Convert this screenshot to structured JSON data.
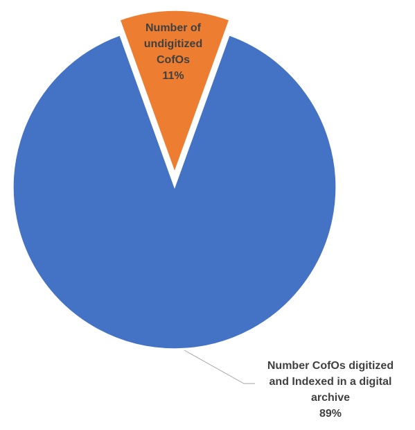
{
  "chart_data": {
    "type": "pie",
    "title": "",
    "slices": [
      {
        "label_lines": [
          "Number CofOs digitized",
          "and Indexed in a digital",
          "archive"
        ],
        "label": "Number CofOs digitized and Indexed in a digital archive",
        "value": 89,
        "percent_label": "89%",
        "color": "#4472C4",
        "exploded": false
      },
      {
        "label_lines": [
          "Number of",
          "undigitized",
          "CofOs"
        ],
        "label": "Number of undigitized CofOs",
        "value": 11,
        "percent_label": "11%",
        "color": "#ED7D31",
        "exploded": true
      }
    ],
    "legend": "none",
    "data_labels": "category name and percentage",
    "label_color": "#404040",
    "leader_line_color": "#A6A6A6"
  }
}
